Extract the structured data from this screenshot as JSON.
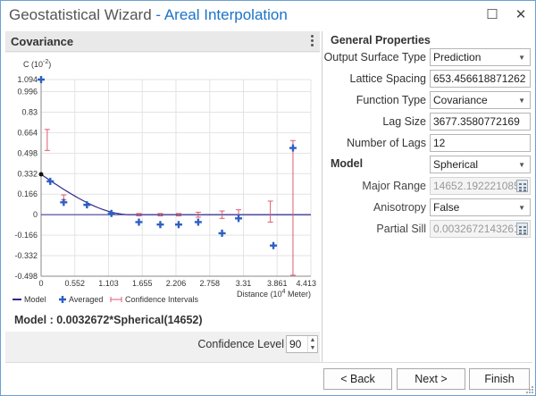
{
  "window": {
    "title": "Geostatistical Wizard",
    "separator": " - ",
    "subtitle": "Areal Interpolation",
    "maximize_glyph": "☐",
    "close_glyph": "✕"
  },
  "left_panel": {
    "header": "Covariance",
    "formula": "Model : 0.0032672*Spherical(14652)",
    "confidence_label": "Confidence Level",
    "confidence_value": "90"
  },
  "chart_data": {
    "type": "scatter",
    "title": "",
    "ylabel_base": "C (10",
    "ylabel_exp": "-2",
    "ylabel_tail": ")",
    "xlabel_base": "Distance (10",
    "xlabel_exp": "4",
    "xlabel_tail": " Meter)",
    "xlim": [
      0,
      4.413
    ],
    "ylim": [
      -0.498,
      1.094
    ],
    "xticks": [
      0,
      0.552,
      1.103,
      1.655,
      2.206,
      2.758,
      3.31,
      3.861,
      4.413
    ],
    "xtick_labels": [
      "0",
      "0.552",
      "1.103",
      "1.655",
      "2.206",
      "2.758",
      "3.31",
      "3.861",
      "4.413"
    ],
    "yticks": [
      1.094,
      0.996,
      0.83,
      0.664,
      0.498,
      0.332,
      0.166,
      0,
      -0.166,
      -0.332,
      -0.498
    ],
    "ytick_labels": [
      "1.094",
      "0.996",
      "0.83",
      "0.664",
      "0.498",
      "0.332",
      "0.166",
      "0",
      "-0.166",
      "-0.332",
      "-0.498"
    ],
    "legend": [
      "Model",
      "Averaged",
      "Confidence Intervals"
    ],
    "model": {
      "sill": 0.3267,
      "range": 1.4652,
      "name": "Spherical"
    },
    "averaged": {
      "x": [
        0,
        0.15,
        0.37,
        0.75,
        1.15,
        1.6,
        1.95,
        2.25,
        2.57,
        2.96,
        3.23,
        3.8,
        4.12
      ],
      "y": [
        1.094,
        0.27,
        0.1,
        0.08,
        0.01,
        -0.06,
        -0.08,
        -0.08,
        -0.06,
        -0.15,
        -0.03,
        -0.25,
        0.54
      ]
    },
    "confidence_intervals": [
      {
        "x": 0.1,
        "low": 0.52,
        "high": 0.69
      },
      {
        "x": 0.37,
        "low": 0.12,
        "high": 0.16
      },
      {
        "x": 1.6,
        "low": -0.01,
        "high": 0.01
      },
      {
        "x": 1.95,
        "low": -0.01,
        "high": 0.01
      },
      {
        "x": 2.25,
        "low": -0.01,
        "high": 0.01
      },
      {
        "x": 2.57,
        "low": -0.02,
        "high": 0.02
      },
      {
        "x": 2.96,
        "low": -0.03,
        "high": 0.03
      },
      {
        "x": 3.23,
        "low": -0.03,
        "high": 0.04
      },
      {
        "x": 3.75,
        "low": -0.06,
        "high": 0.11
      },
      {
        "x": 4.12,
        "low": -0.49,
        "high": 0.6
      }
    ],
    "colors": {
      "model": "#2e2a8c",
      "averaged": "#2d5fc4",
      "ci": "#e05a6e",
      "zero_line": "#2e2a8c"
    }
  },
  "right_panel": {
    "general_heading": "General Properties",
    "output_surface_type_label": "Output Surface Type",
    "output_surface_type_value": "Prediction",
    "lattice_spacing_label": "Lattice Spacing",
    "lattice_spacing_value": "653.456618871262",
    "function_type_label": "Function Type",
    "function_type_value": "Covariance",
    "lag_size_label": "Lag Size",
    "lag_size_value": "3677.3580772169",
    "number_of_lags_label": "Number of Lags",
    "number_of_lags_value": "12",
    "model_heading": "Model",
    "model_value": "Spherical",
    "major_range_label": "Major Range",
    "major_range_value": "14652.192221085",
    "anisotropy_label": "Anisotropy",
    "anisotropy_value": "False",
    "partial_sill_label": "Partial Sill",
    "partial_sill_value": "0.0032672143261"
  },
  "footer": {
    "back_label": "< Back",
    "next_label": "Next >",
    "finish_label": "Finish"
  }
}
